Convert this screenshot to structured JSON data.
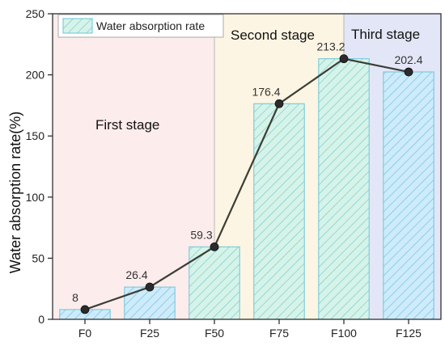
{
  "chart_data": {
    "type": "bar",
    "title": "",
    "xlabel": "",
    "ylabel": "Water absorption rate(%)",
    "categories": [
      "F0",
      "F25",
      "F50",
      "F75",
      "F100",
      "F125"
    ],
    "series": [
      {
        "name": "Water absorption rate",
        "values": [
          8,
          26.4,
          59.3,
          176.4,
          213.2,
          202.4
        ],
        "data_labels": [
          "8",
          "26.4",
          "59.3",
          "176.4",
          "213.2",
          "202.4"
        ]
      }
    ],
    "overlay_line": true,
    "ylim": [
      0,
      250
    ],
    "yticks": [
      0,
      50,
      100,
      150,
      200,
      250
    ],
    "yticks_labels": [
      "0",
      "50",
      "100",
      "150",
      "200",
      "250"
    ],
    "legend": {
      "position": "top-left",
      "label": "Water absorption rate"
    },
    "grid": false,
    "stages": [
      {
        "label": "First stage",
        "from": 0,
        "to": 2,
        "color": "#fdecec"
      },
      {
        "label": "Second stage",
        "from": 2,
        "to": 4,
        "color": "#fcf5e3"
      },
      {
        "label": "Third stage",
        "from": 4,
        "to": 5.5,
        "color": "#e3e6f6"
      }
    ],
    "colors": {
      "bar_fill_green": "#d4f3e6",
      "bar_fill_blue": "#ccecfa",
      "bar_stroke": "#6cc6d7",
      "hatch": "#74c7d9",
      "line": "#3d3d35",
      "marker": "#2b2b2b"
    }
  }
}
